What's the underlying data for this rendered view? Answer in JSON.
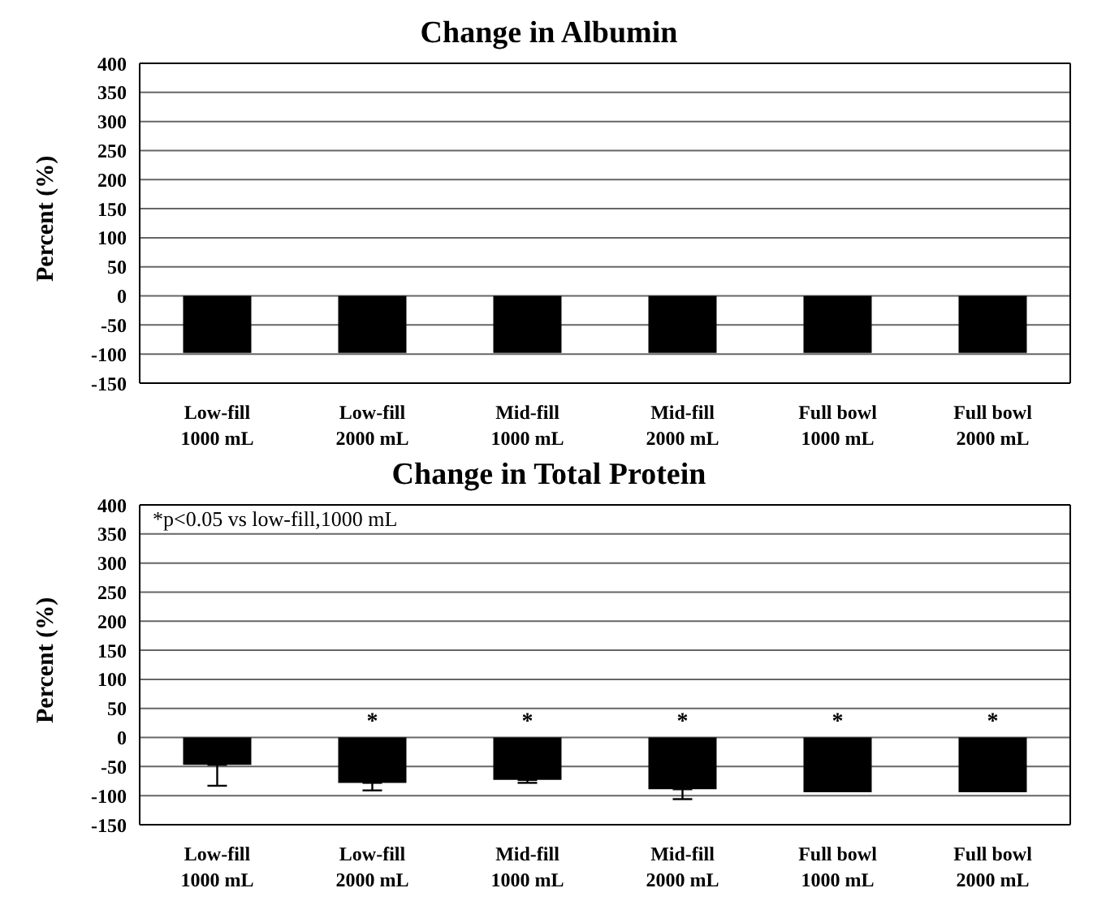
{
  "chart_data": [
    {
      "type": "bar",
      "title": "Change in Albumin",
      "ylabel": "Percent (%)",
      "categories": [
        "Low-fill\n1000 mL",
        "Low-fill\n2000 mL",
        "Mid-fill\n1000 mL",
        "Mid-fill\n2000 mL",
        "Full bowl\n1000 mL",
        "Full bowl\n2000 mL"
      ],
      "values": [
        -98,
        -98,
        -98,
        -98,
        -98,
        -98
      ],
      "color": "#000000",
      "ylim": [
        -150,
        400
      ],
      "yticks": [
        -150,
        -100,
        -50,
        0,
        50,
        100,
        150,
        200,
        250,
        300,
        350,
        400
      ],
      "grid": "y"
    },
    {
      "type": "bar",
      "title": "Change in Total Protein",
      "ylabel": "Percent (%)",
      "categories": [
        "Low-fill\n1000 mL",
        "Low-fill\n2000 mL",
        "Mid-fill\n1000 mL",
        "Mid-fill\n2000 mL",
        "Full bowl\n1000 mL",
        "Full bowl\n2000 mL"
      ],
      "values": [
        -47,
        -78,
        -73,
        -89,
        -94,
        -94
      ],
      "color": "#000000",
      "errors": [
        [
          -83,
          -47
        ],
        [
          -91,
          -78
        ],
        [
          -78,
          -73
        ],
        [
          -106,
          -89
        ],
        null,
        null
      ],
      "ylim": [
        -150,
        400
      ],
      "yticks": [
        -150,
        -100,
        -50,
        0,
        50,
        100,
        150,
        200,
        250,
        300,
        350,
        400
      ],
      "grid": "y",
      "value_labels": [
        null,
        "*",
        "*",
        "*",
        "*",
        "*"
      ],
      "annotations": [
        "*p<0.05 vs low-fill,1000 mL"
      ]
    }
  ]
}
